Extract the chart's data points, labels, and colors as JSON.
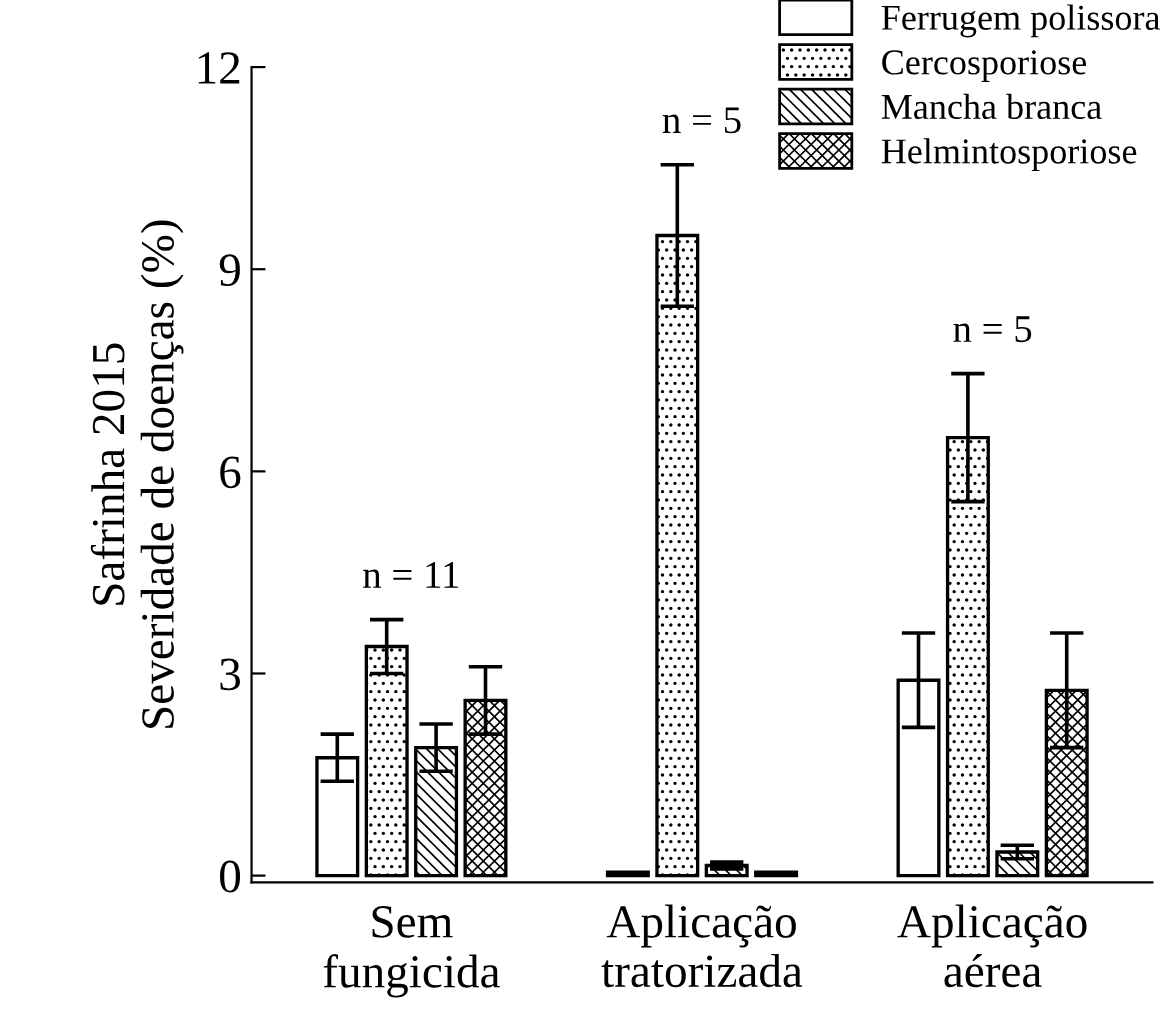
{
  "chart_data": {
    "type": "bar",
    "ylabel": "Safrinha 2015\nSeveridade de doenças (%)",
    "categories": [
      "Sem\nfungicida",
      "Aplicação\ntratorizada",
      "Aplicação\naérea"
    ],
    "series": [
      {
        "name": "Ferrugem polissora",
        "color": "#ffffff",
        "values": [
          1.75,
          0.05,
          2.9
        ],
        "errors": [
          0.35,
          null,
          0.7
        ]
      },
      {
        "name": "Cercosporiose",
        "color": "#000000",
        "values": [
          3.4,
          9.5,
          6.5
        ],
        "errors": [
          0.4,
          1.05,
          0.95
        ]
      },
      {
        "name": "Mancha branca",
        "color": "#000000",
        "values": [
          1.9,
          0.15,
          0.35
        ],
        "errors": [
          0.35,
          0.05,
          0.1
        ]
      },
      {
        "name": "Helmintosporiose",
        "color": "#000000",
        "values": [
          2.6,
          0.05,
          2.75
        ],
        "errors": [
          0.5,
          null,
          0.85
        ]
      }
    ],
    "ylim": [
      -0.1,
      12
    ],
    "yticks": [
      0,
      3,
      6,
      9,
      12
    ],
    "grid": false,
    "legend": "top right",
    "annotations": [
      "n = 11",
      "n = 5",
      "n = 5"
    ]
  }
}
